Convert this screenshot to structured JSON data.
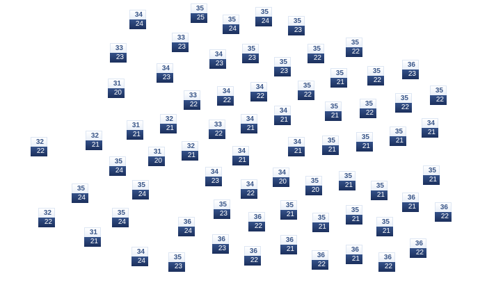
{
  "colors": {
    "high_text": "#3a5688",
    "low_bg": "#1b2f5c",
    "low_text": "#ffffff"
  },
  "markers": [
    {
      "high": "34",
      "low": "24"
    },
    {
      "high": "35",
      "low": "25"
    },
    {
      "high": "35",
      "low": "24"
    },
    {
      "high": "35",
      "low": "24"
    },
    {
      "high": "35",
      "low": "23"
    },
    {
      "high": "33",
      "low": "23"
    },
    {
      "high": "33",
      "low": "23"
    },
    {
      "high": "34",
      "low": "23"
    },
    {
      "high": "35",
      "low": "23"
    },
    {
      "high": "35",
      "low": "23"
    },
    {
      "high": "35",
      "low": "22"
    },
    {
      "high": "35",
      "low": "22"
    },
    {
      "high": "36",
      "low": "23"
    },
    {
      "high": "35",
      "low": "21"
    },
    {
      "high": "35",
      "low": "22"
    },
    {
      "high": "34",
      "low": "23"
    },
    {
      "high": "31",
      "low": "20"
    },
    {
      "high": "33",
      "low": "22"
    },
    {
      "high": "34",
      "low": "22"
    },
    {
      "high": "34",
      "low": "22"
    },
    {
      "high": "35",
      "low": "22"
    },
    {
      "high": "35",
      "low": "22"
    },
    {
      "high": "35",
      "low": "22"
    },
    {
      "high": "35",
      "low": "22"
    },
    {
      "high": "35",
      "low": "21"
    },
    {
      "high": "34",
      "low": "21"
    },
    {
      "high": "34",
      "low": "21"
    },
    {
      "high": "33",
      "low": "22"
    },
    {
      "high": "32",
      "low": "21"
    },
    {
      "high": "31",
      "low": "21"
    },
    {
      "high": "32",
      "low": "21"
    },
    {
      "high": "32",
      "low": "22"
    },
    {
      "high": "34",
      "low": "21"
    },
    {
      "high": "35",
      "low": "21"
    },
    {
      "high": "35",
      "low": "21"
    },
    {
      "high": "35",
      "low": "21"
    },
    {
      "high": "34",
      "low": "21"
    },
    {
      "high": "34",
      "low": "21"
    },
    {
      "high": "32",
      "low": "21"
    },
    {
      "high": "31",
      "low": "20"
    },
    {
      "high": "35",
      "low": "24"
    },
    {
      "high": "34",
      "low": "23"
    },
    {
      "high": "34",
      "low": "20"
    },
    {
      "high": "34",
      "low": "22"
    },
    {
      "high": "35",
      "low": "20"
    },
    {
      "high": "35",
      "low": "21"
    },
    {
      "high": "35",
      "low": "21"
    },
    {
      "high": "35",
      "low": "21"
    },
    {
      "high": "36",
      "low": "21"
    },
    {
      "high": "36",
      "low": "22"
    },
    {
      "high": "35",
      "low": "24"
    },
    {
      "high": "35",
      "low": "24"
    },
    {
      "high": "32",
      "low": "22"
    },
    {
      "high": "35",
      "low": "24"
    },
    {
      "high": "35",
      "low": "23"
    },
    {
      "high": "35",
      "low": "21"
    },
    {
      "high": "36",
      "low": "22"
    },
    {
      "high": "35",
      "low": "21"
    },
    {
      "high": "35",
      "low": "21"
    },
    {
      "high": "35",
      "low": "21"
    },
    {
      "high": "36",
      "low": "24"
    },
    {
      "high": "31",
      "low": "21"
    },
    {
      "high": "36",
      "low": "23"
    },
    {
      "high": "36",
      "low": "21"
    },
    {
      "high": "36",
      "low": "22"
    },
    {
      "high": "36",
      "low": "22"
    },
    {
      "high": "36",
      "low": "21"
    },
    {
      "high": "36",
      "low": "22"
    },
    {
      "high": "36",
      "low": "22"
    },
    {
      "high": "34",
      "low": "24"
    },
    {
      "high": "35",
      "low": "23"
    }
  ]
}
